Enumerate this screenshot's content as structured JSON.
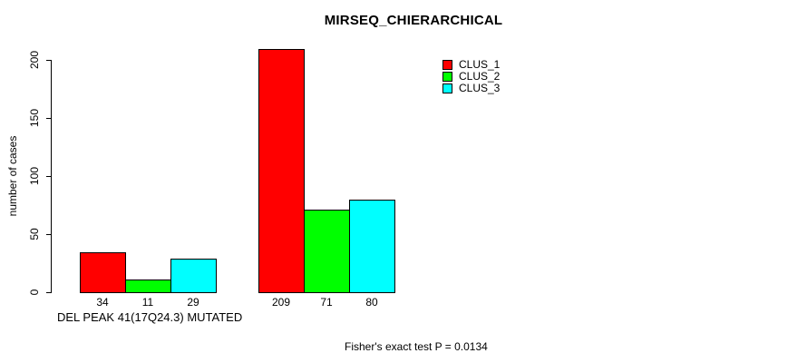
{
  "chart_data": {
    "type": "bar",
    "title": "MIRSEQ_CHIERARCHICAL",
    "ylabel": "number of cases",
    "xlabel": "",
    "ylim": [
      0,
      200
    ],
    "yticks": [
      0,
      50,
      100,
      150,
      200
    ],
    "grid": false,
    "legend_position": "top-right",
    "value_labels": true,
    "bar_border_color": "#000000",
    "background_color": "#ffffff",
    "categories": [
      "DEL PEAK 41(17Q24.3) MUTATED",
      ""
    ],
    "series": [
      {
        "name": "CLUS_1",
        "color": "#ff0000",
        "values": [
          34,
          209
        ]
      },
      {
        "name": "CLUS_2",
        "color": "#00ff00",
        "values": [
          11,
          71
        ]
      },
      {
        "name": "CLUS_3",
        "color": "#00ffff",
        "values": [
          29,
          80
        ]
      }
    ],
    "annotation": "Fisher's exact test P = 0.0134"
  }
}
